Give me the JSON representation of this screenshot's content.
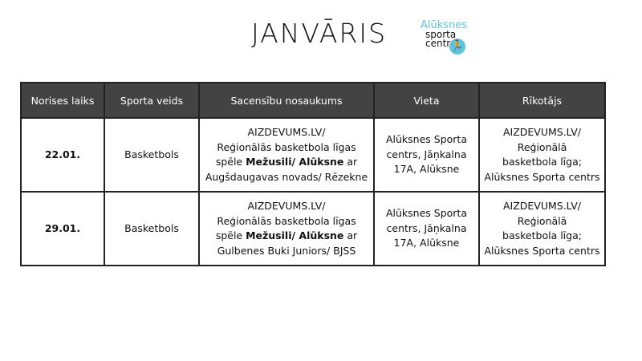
{
  "title": "JANVĀRIS",
  "logo": {
    "line1": "Alūksnes",
    "line2": "sporta",
    "line3": "centrs",
    "icon": "runner-icon"
  },
  "table": {
    "headers": [
      "Norises laiks",
      "Sporta veids",
      "Sacensību nosaukums",
      "Vieta",
      "Rīkotājs"
    ],
    "rows": [
      {
        "date": "22.01.",
        "sport": "Basketbols",
        "name": {
          "l1": "AIZDEVUMS.LV/",
          "l2": "Reģionālās basketbola līgas",
          "l3a": "spēle ",
          "l3b": "Mežusili/ Alūksne",
          "l3c": " ar",
          "l4": "Augšdaugavas novads/ Rēzekne"
        },
        "place": [
          "Alūksnes Sporta",
          "centrs, Jāņkalna",
          "17A, Alūksne"
        ],
        "org": [
          "AIZDEVUMS.LV/",
          "Reģionālā",
          "basketbola līga;",
          "Alūksnes Sporta centrs"
        ]
      },
      {
        "date": "29.01.",
        "sport": "Basketbols",
        "name": {
          "l1": "AIZDEVUMS.LV/",
          "l2": "Reģionālās basketbola līgas",
          "l3a": "spēle ",
          "l3b": "Mežusili/ Alūksne",
          "l3c": " ar",
          "l4": "Gulbenes Buki Juniors/ BJSS"
        },
        "place": [
          "Alūksnes Sporta",
          "centrs, Jāņkalna",
          "17A, Alūksne"
        ],
        "org": [
          "AIZDEVUMS.LV/",
          "Reģionālā",
          "basketbola līga;",
          "Alūksnes Sporta centrs"
        ]
      }
    ]
  }
}
